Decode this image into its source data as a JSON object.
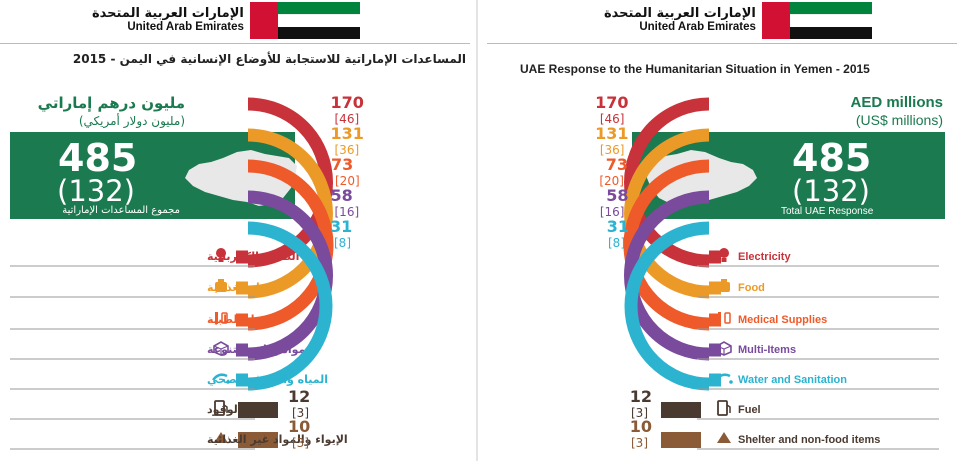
{
  "logo": {
    "arabic": "الإمارات العربية المتحدة",
    "english": "United Arab Emirates"
  },
  "colors": {
    "green_box": "#1b7a4f",
    "flag_red": "#d21034",
    "flag_green": "#00843d",
    "flag_black": "#111111"
  },
  "arabic_panel": {
    "title": "المساعدات الإماراتية للاستجابة للأوضاع الإنسانية في اليمن - 2015",
    "unit_label": "مليون درهم إماراتي",
    "unit_sub": "(مليون دولار أمريكي)",
    "total_label": "مجموع المساعدات الإماراتية"
  },
  "english_panel": {
    "title": "UAE Response to the Humanitarian Situation in Yemen - 2015",
    "unit_label": "AED millions",
    "unit_sub": "(US$ millions)",
    "total_label": "Total UAE Response"
  },
  "chart_data": {
    "type": "bar",
    "title": "UAE Response to the Humanitarian Situation in Yemen - 2015",
    "total": {
      "aed_millions": 485,
      "usd_millions": 132,
      "aed_text": "485",
      "usd_text": "(132)"
    },
    "categories": [
      "Electricity",
      "Food",
      "Medical Supplies",
      "Multi-Items",
      "Water and Sanitation",
      "Fuel",
      "Shelter and non-food items"
    ],
    "categories_ar": [
      "الطاقة الكهربائية",
      "المواد الغذائية",
      "المواد الطبية",
      "مواد إغاثية متنوعة",
      "المياه والصرف الصحي",
      "الوقود",
      "الإيواء والمواد غير الغذائية"
    ],
    "series": [
      {
        "name": "AED millions",
        "values": [
          170,
          131,
          73,
          58,
          31,
          12,
          10
        ],
        "labels": [
          "170",
          "131",
          "73",
          "58",
          "31",
          "12",
          "10"
        ]
      },
      {
        "name": "US$ millions",
        "values": [
          46,
          36,
          20,
          16,
          8,
          3,
          3
        ],
        "labels": [
          "[46]",
          "[36]",
          "[20]",
          "[16]",
          "[8]",
          "[3]",
          "[3]"
        ]
      }
    ],
    "colors": [
      "#c8323a",
      "#ec9a27",
      "#ee5a2a",
      "#7a4a9c",
      "#2bb3d0",
      "#4a3a30",
      "#8b5a36"
    ],
    "icons": [
      "bulb-icon",
      "food-bag-icon",
      "medical-icon",
      "box-icon",
      "water-tap-icon",
      "fuel-pump-icon",
      "tent-icon"
    ]
  }
}
